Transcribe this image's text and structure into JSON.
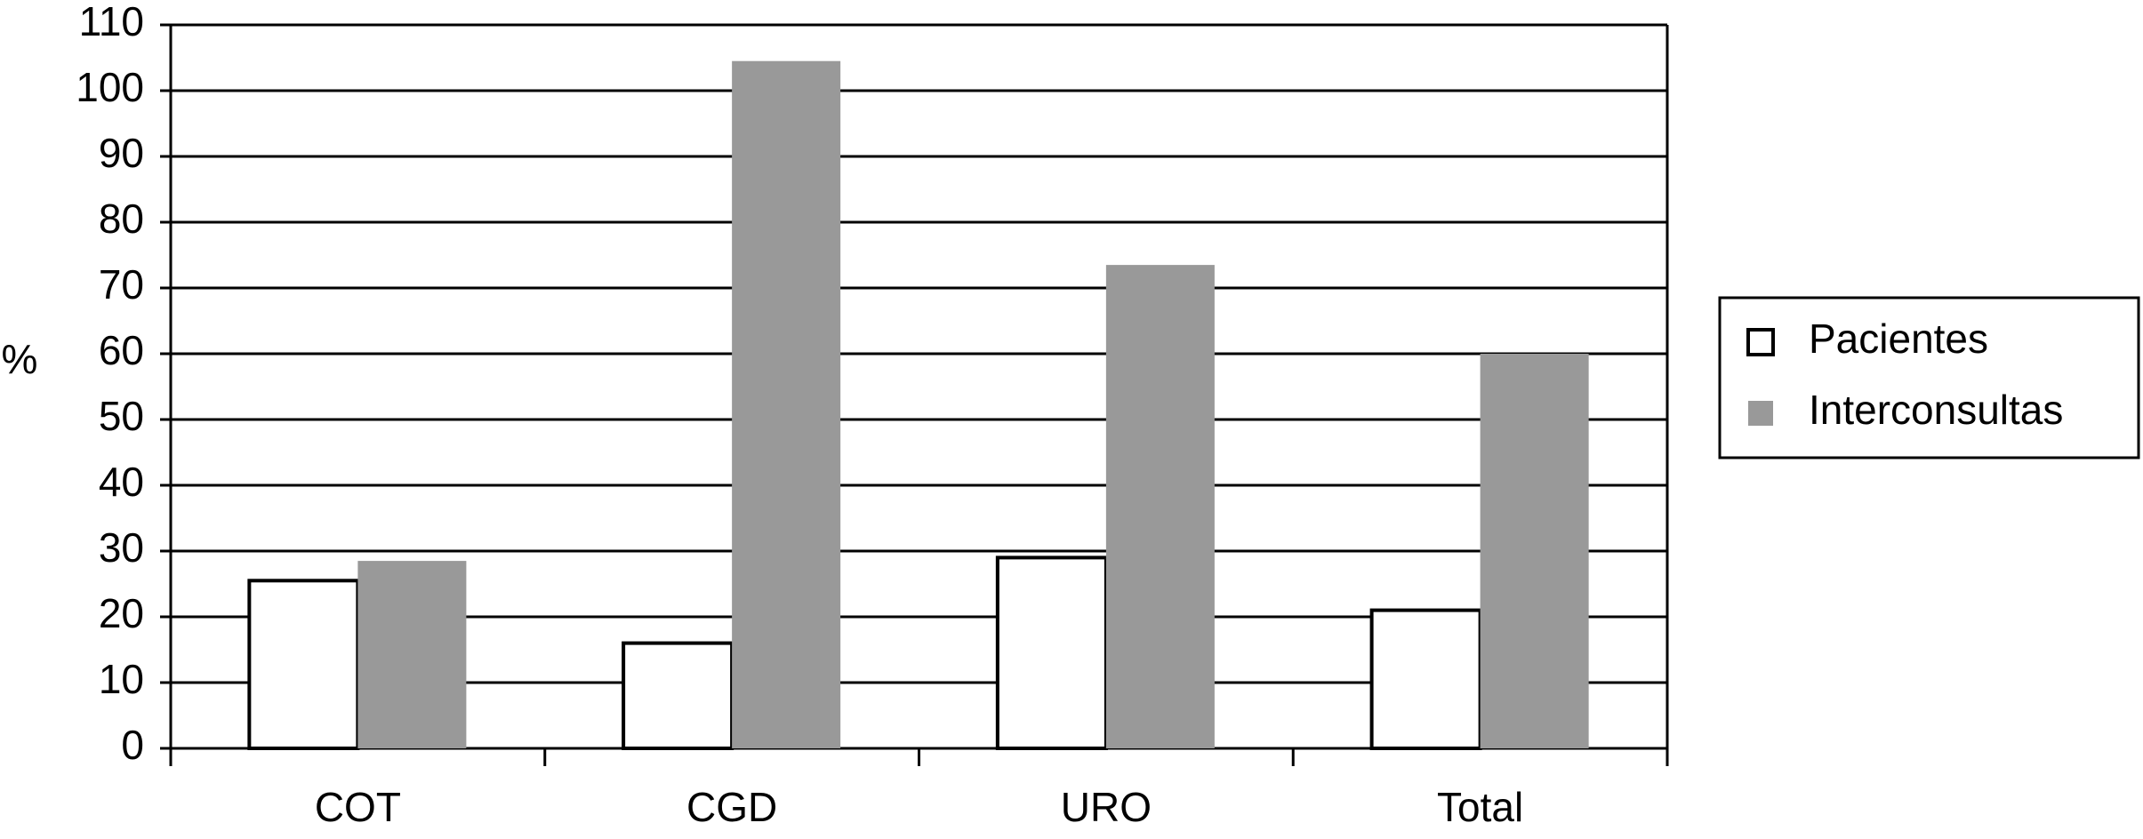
{
  "chart_data": {
    "type": "bar",
    "y_label": "%",
    "categories": [
      "COT",
      "CGD",
      "URO",
      "Total"
    ],
    "series": [
      {
        "name": "Pacientes",
        "color": "#ffffff",
        "values": [
          25.5,
          16,
          29,
          21
        ]
      },
      {
        "name": "Interconsultas",
        "color": "#999999",
        "values": [
          28.5,
          104.5,
          73.5,
          60
        ]
      }
    ],
    "ylim": [
      0,
      110
    ],
    "yticks": [
      0,
      10,
      20,
      30,
      40,
      50,
      60,
      70,
      80,
      90,
      100,
      110
    ],
    "grid": true,
    "legend": "right"
  }
}
